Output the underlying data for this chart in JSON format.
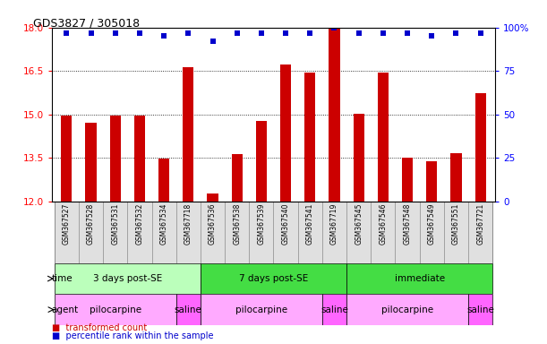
{
  "title": "GDS3827 / 305018",
  "samples": [
    "GSM367527",
    "GSM367528",
    "GSM367531",
    "GSM367532",
    "GSM367534",
    "GSM367718",
    "GSM367536",
    "GSM367538",
    "GSM367539",
    "GSM367540",
    "GSM367541",
    "GSM367719",
    "GSM367545",
    "GSM367546",
    "GSM367548",
    "GSM367549",
    "GSM367551",
    "GSM367721"
  ],
  "bar_values": [
    14.97,
    14.72,
    14.97,
    14.97,
    13.47,
    16.62,
    12.28,
    13.62,
    14.78,
    16.72,
    16.45,
    17.98,
    15.02,
    16.45,
    13.52,
    13.37,
    13.67,
    15.72
  ],
  "percentile_values": [
    97,
    97,
    97,
    97,
    95,
    97,
    92,
    97,
    97,
    97,
    97,
    100,
    97,
    97,
    97,
    95,
    97,
    97
  ],
  "bar_color": "#cc0000",
  "percentile_color": "#0000cc",
  "ylim_left": [
    12,
    18
  ],
  "ylim_right": [
    0,
    100
  ],
  "yticks_left": [
    12,
    13.5,
    15,
    16.5,
    18
  ],
  "yticks_right": [
    0,
    25,
    50,
    75,
    100
  ],
  "grid_values": [
    13.5,
    15,
    16.5
  ],
  "time_groups": [
    {
      "label": "3 days post-SE",
      "start": 0,
      "end": 6,
      "color": "#bbffbb"
    },
    {
      "label": "7 days post-SE",
      "start": 6,
      "end": 12,
      "color": "#44dd44"
    },
    {
      "label": "immediate",
      "start": 12,
      "end": 18,
      "color": "#44dd44"
    }
  ],
  "agent_groups": [
    {
      "label": "pilocarpine",
      "start": 0,
      "end": 5,
      "color": "#ffaaff"
    },
    {
      "label": "saline",
      "start": 5,
      "end": 6,
      "color": "#ff66ff"
    },
    {
      "label": "pilocarpine",
      "start": 6,
      "end": 11,
      "color": "#ffaaff"
    },
    {
      "label": "saline",
      "start": 11,
      "end": 12,
      "color": "#ff66ff"
    },
    {
      "label": "pilocarpine",
      "start": 12,
      "end": 17,
      "color": "#ffaaff"
    },
    {
      "label": "saline",
      "start": 17,
      "end": 18,
      "color": "#ff66ff"
    }
  ],
  "legend_items": [
    {
      "label": "transformed count",
      "color": "#cc0000"
    },
    {
      "label": "percentile rank within the sample",
      "color": "#0000cc"
    }
  ]
}
